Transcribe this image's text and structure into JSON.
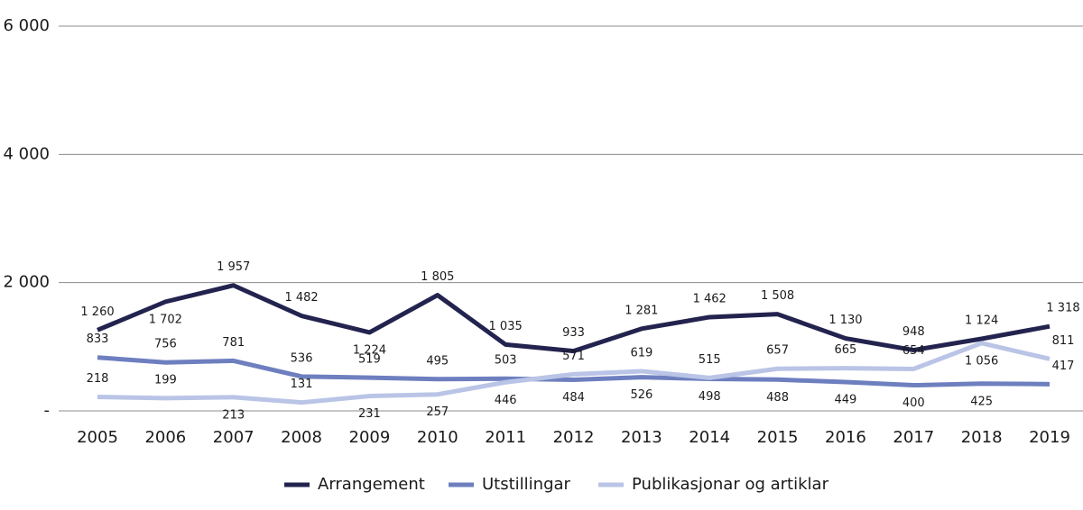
{
  "chart_data": {
    "type": "line",
    "x": [
      2005,
      2006,
      2007,
      2008,
      2009,
      2010,
      2011,
      2012,
      2013,
      2014,
      2015,
      2016,
      2017,
      2018,
      2019
    ],
    "series": [
      {
        "name": "Arrangement",
        "color": "#23234f",
        "values": [
          1260,
          1702,
          1957,
          1482,
          1224,
          1805,
          1035,
          933,
          1281,
          1462,
          1508,
          1130,
          948,
          1124,
          1318
        ],
        "value_labels": [
          "1 260",
          "1 702",
          "1 957",
          "1 482",
          "1 224",
          "1 805",
          "1 035",
          "933",
          "1 281",
          "1 462",
          "1 508",
          "1 130",
          "948",
          "1 124",
          "1 318"
        ]
      },
      {
        "name": "Utstillingar",
        "color": "#6e7fbf",
        "values": [
          833,
          756,
          781,
          536,
          519,
          495,
          503,
          484,
          526,
          498,
          488,
          449,
          400,
          425,
          417
        ]
      },
      {
        "name": "Publikasjonar og artiklar",
        "color": "#b9c4e6",
        "values": [
          218,
          199,
          213,
          131,
          231,
          257,
          446,
          571,
          619,
          515,
          657,
          665,
          654,
          1056,
          811
        ],
        "value_labels": [
          "218",
          "199",
          "213",
          "131",
          "231",
          "257",
          "446",
          "571",
          "619",
          "515",
          "657",
          "665",
          "654",
          "1 056",
          "811"
        ]
      }
    ],
    "ylim": [
      0,
      6000
    ],
    "yticks": [
      {
        "value": 0,
        "label": "-"
      },
      {
        "value": 2000,
        "label": "2 000"
      },
      {
        "value": 4000,
        "label": "4 000"
      },
      {
        "value": 6000,
        "label": "6 000"
      }
    ],
    "grid": true,
    "legend": "bottom"
  }
}
